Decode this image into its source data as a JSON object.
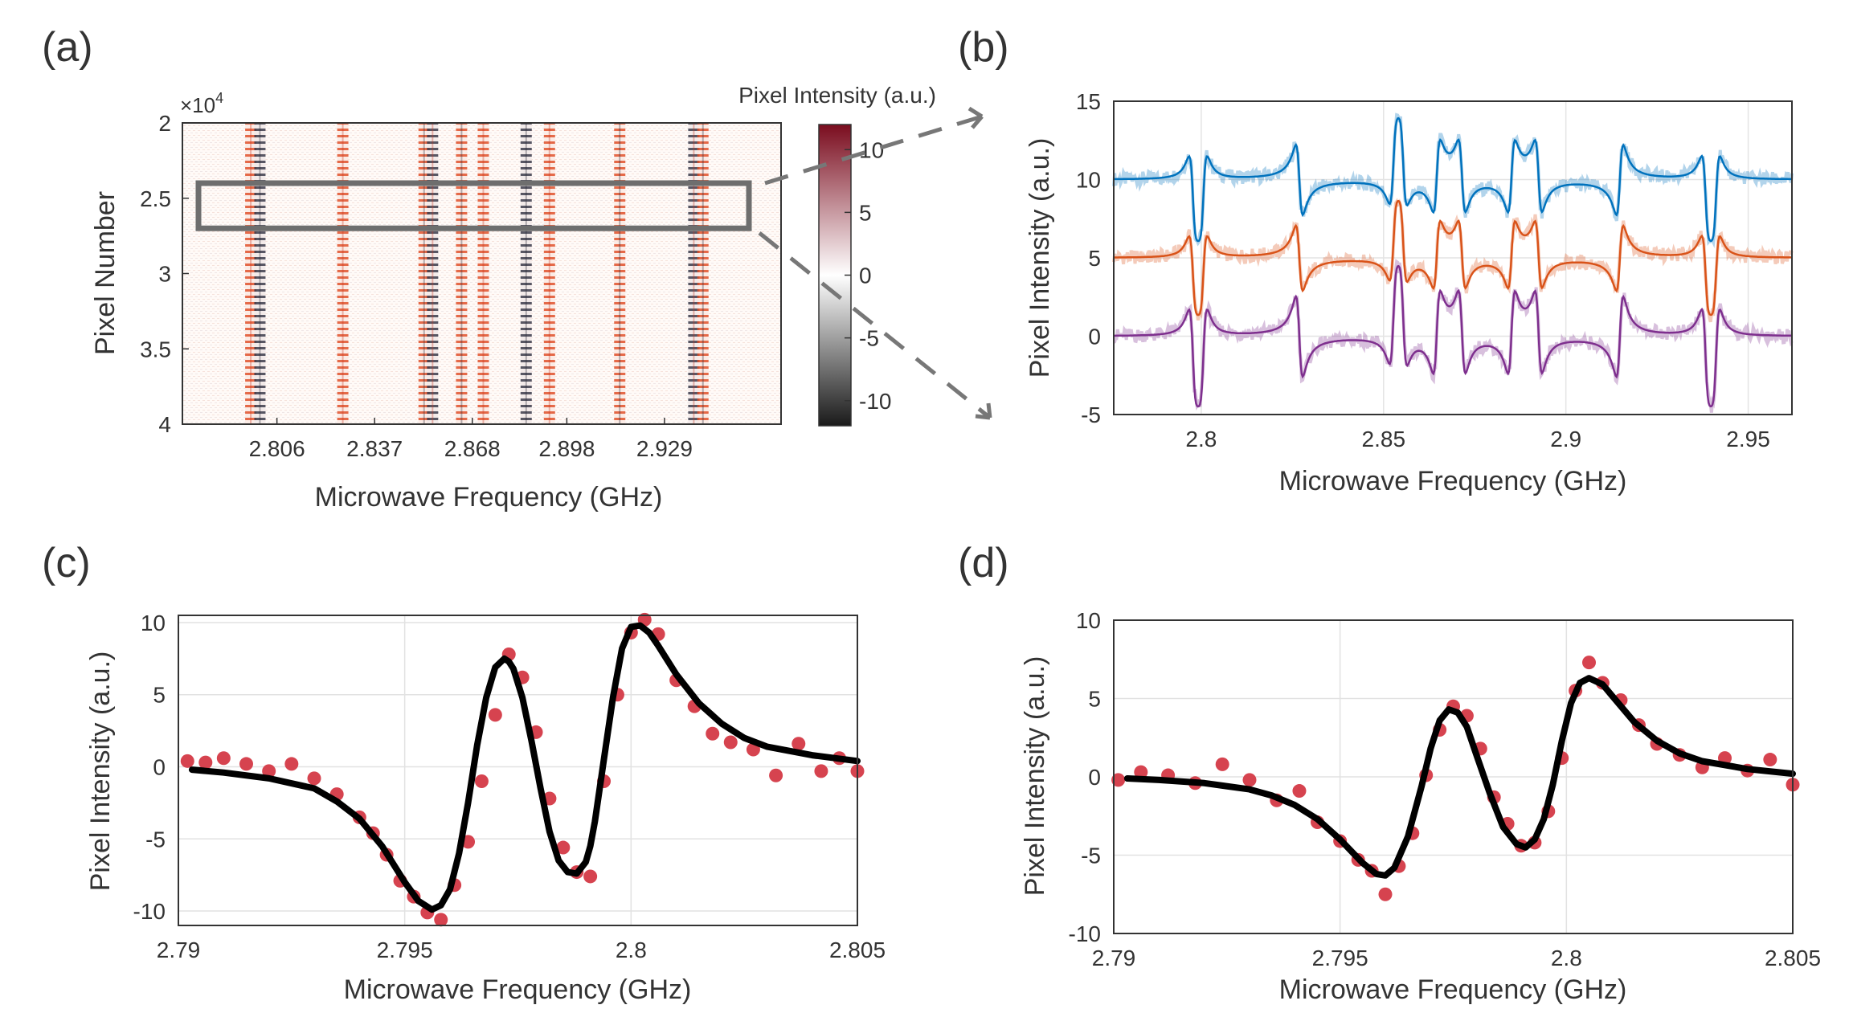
{
  "panels": {
    "a": {
      "label": "(a)"
    },
    "b": {
      "label": "(b)"
    },
    "c": {
      "label": "(c)"
    },
    "d": {
      "label": "(d)"
    }
  },
  "chart_data": [
    {
      "id": "a",
      "type": "heatmap",
      "title": "",
      "xlabel": "Microwave Frequency (GHz)",
      "ylabel": "Pixel Number",
      "xticks": [
        "2.806",
        "2.837",
        "2.868",
        "2.898",
        "2.929"
      ],
      "xtick_values": [
        2.806,
        2.837,
        2.868,
        2.898,
        2.929
      ],
      "xlim": [
        2.776,
        2.966
      ],
      "yticks": [
        "2",
        "2.5",
        "3",
        "3.5",
        "4"
      ],
      "ytick_values": [
        2,
        2.5,
        3,
        3.5,
        4
      ],
      "ylim": [
        2,
        4
      ],
      "y_multiplier": "×10",
      "y_multiplier_exponent": "4",
      "colorbar": {
        "label": "Pixel Intensity (a.u.)",
        "ticks": [
          "10",
          "5",
          "0",
          "-5",
          "-10"
        ],
        "tick_values": [
          10,
          5,
          0,
          -5,
          -10
        ],
        "range": [
          -12,
          12
        ],
        "colors": [
          "#1a1a1a",
          "#ffffff",
          "#7a0c1e"
        ]
      },
      "resonance_frequencies_ghz": [
        2.7977,
        2.8006,
        2.8269,
        2.8527,
        2.8554,
        2.8646,
        2.8715,
        2.8851,
        2.8925,
        2.9148,
        2.9383,
        2.9412
      ],
      "highlight_rows": [
        2.4,
        2.7
      ]
    },
    {
      "id": "b",
      "type": "line",
      "xlabel": "Microwave Frequency (GHz)",
      "ylabel": "Pixel Intensity (a.u.)",
      "xticks": [
        "2.8",
        "2.85",
        "2.9",
        "2.95"
      ],
      "xtick_values": [
        2.8,
        2.85,
        2.9,
        2.95
      ],
      "xlim": [
        2.776,
        2.962
      ],
      "yticks": [
        "15",
        "10",
        "5",
        "0",
        "-5"
      ],
      "ytick_values": [
        15,
        10,
        5,
        0,
        -5
      ],
      "ylim": [
        -5,
        15
      ],
      "resonance_frequencies_ghz": [
        2.7977,
        2.8006,
        2.8269,
        2.8527,
        2.8554,
        2.8646,
        2.8715,
        2.8851,
        2.8925,
        2.9148,
        2.9383,
        2.9412
      ],
      "series": [
        {
          "name": "top",
          "offset": 10,
          "amplitude": 2.8,
          "color": "#0072bd"
        },
        {
          "name": "middle",
          "offset": 5,
          "amplitude": 2.6,
          "color": "#d95319"
        },
        {
          "name": "bottom",
          "offset": 0,
          "amplitude": 3.2,
          "color": "#7e2f8e"
        }
      ]
    },
    {
      "id": "c",
      "type": "scatter",
      "xlabel": "Microwave Frequency (GHz)",
      "ylabel": "Pixel Intensity (a.u.)",
      "xticks": [
        "2.79",
        "2.795",
        "2.8",
        "2.805"
      ],
      "xtick_values": [
        2.79,
        2.795,
        2.8,
        2.805
      ],
      "xlim": [
        2.79,
        2.805
      ],
      "yticks": [
        "10",
        "5",
        "0",
        "-5",
        "-10"
      ],
      "ytick_values": [
        10,
        5,
        0,
        -5,
        -10
      ],
      "ylim": [
        -11,
        10.5
      ],
      "fit_x": [
        2.7903,
        2.791,
        2.792,
        2.793,
        2.7935,
        2.794,
        2.7945,
        2.795,
        2.7953,
        2.7956,
        2.7958,
        2.796,
        2.7962,
        2.7964,
        2.7966,
        2.7968,
        2.797,
        2.7972,
        2.7973,
        2.7974,
        2.7976,
        2.7978,
        2.798,
        2.7982,
        2.7984,
        2.7986,
        2.7988,
        2.799,
        2.7991,
        2.7992,
        2.7994,
        2.7996,
        2.7998,
        2.8,
        2.8002,
        2.8004,
        2.8006,
        2.801,
        2.8015,
        2.802,
        2.8025,
        2.803,
        2.804,
        2.805
      ],
      "fit_y": [
        -0.2,
        -0.4,
        -0.8,
        -1.5,
        -2.4,
        -3.6,
        -5.5,
        -8.0,
        -9.3,
        -9.9,
        -9.6,
        -8.5,
        -6.0,
        -2.5,
        1.5,
        4.8,
        6.9,
        7.5,
        7.3,
        6.8,
        4.8,
        1.8,
        -1.5,
        -4.5,
        -6.5,
        -7.3,
        -7.4,
        -6.6,
        -5.5,
        -3.8,
        0.5,
        4.8,
        8.2,
        9.7,
        9.8,
        9.3,
        8.4,
        6.4,
        4.4,
        3.0,
        2.0,
        1.4,
        0.8,
        0.4
      ],
      "points_x": [
        2.7902,
        2.7906,
        2.791,
        2.7915,
        2.792,
        2.7925,
        2.793,
        2.7935,
        2.794,
        2.7943,
        2.7946,
        2.7949,
        2.7952,
        2.7955,
        2.7958,
        2.7961,
        2.7964,
        2.7967,
        2.797,
        2.7973,
        2.7976,
        2.7979,
        2.7982,
        2.7985,
        2.7988,
        2.7991,
        2.7994,
        2.7997,
        2.8,
        2.8003,
        2.8006,
        2.801,
        2.8014,
        2.8018,
        2.8022,
        2.8027,
        2.8032,
        2.8037,
        2.8042,
        2.8046,
        2.805
      ],
      "points_y": [
        0.4,
        0.3,
        0.6,
        0.2,
        -0.3,
        0.2,
        -0.8,
        -1.9,
        -3.5,
        -4.6,
        -6.1,
        -7.9,
        -9.0,
        -10.1,
        -10.6,
        -8.2,
        -5.2,
        -1.0,
        3.6,
        7.8,
        6.2,
        2.4,
        -2.2,
        -5.6,
        -7.3,
        -7.6,
        -1.0,
        5.0,
        9.3,
        10.2,
        9.2,
        6.0,
        4.2,
        2.3,
        1.7,
        1.2,
        -0.6,
        1.6,
        -0.3,
        0.6,
        -0.3
      ]
    },
    {
      "id": "d",
      "type": "scatter",
      "xlabel": "Microwave Frequency (GHz)",
      "ylabel": "Pixel Intensity (a.u.)",
      "xticks": [
        "2.79",
        "2.795",
        "2.8",
        "2.805"
      ],
      "xtick_values": [
        2.79,
        2.795,
        2.8,
        2.805
      ],
      "xlim": [
        2.79,
        2.805
      ],
      "yticks": [
        "10",
        "5",
        "0",
        "-5",
        "-10"
      ],
      "ytick_values": [
        10,
        5,
        0,
        -5,
        -10
      ],
      "ylim": [
        -10,
        10
      ],
      "fit_x": [
        2.7903,
        2.791,
        2.792,
        2.793,
        2.7935,
        2.794,
        2.7945,
        2.795,
        2.7955,
        2.7958,
        2.796,
        2.7962,
        2.7965,
        2.7968,
        2.797,
        2.7972,
        2.7974,
        2.7976,
        2.7978,
        2.798,
        2.7983,
        2.7986,
        2.7989,
        2.7991,
        2.7993,
        2.7995,
        2.7997,
        2.7999,
        2.8001,
        2.8003,
        2.8005,
        2.8008,
        2.801,
        2.8015,
        2.802,
        2.8025,
        2.803,
        2.804,
        2.805
      ],
      "fit_y": [
        -0.1,
        -0.2,
        -0.4,
        -0.8,
        -1.2,
        -1.8,
        -2.7,
        -4.0,
        -5.5,
        -6.2,
        -6.3,
        -5.8,
        -3.8,
        -0.6,
        1.8,
        3.6,
        4.3,
        4.1,
        3.2,
        1.5,
        -1.0,
        -3.2,
        -4.3,
        -4.5,
        -4.0,
        -2.7,
        -0.5,
        2.3,
        4.7,
        6.0,
        6.3,
        5.9,
        5.2,
        3.5,
        2.3,
        1.5,
        1.0,
        0.5,
        0.2
      ],
      "points_x": [
        2.7901,
        2.7906,
        2.7912,
        2.7918,
        2.7924,
        2.793,
        2.7936,
        2.7941,
        2.7945,
        2.795,
        2.7954,
        2.7957,
        2.796,
        2.7963,
        2.7966,
        2.7969,
        2.7972,
        2.7975,
        2.7978,
        2.7981,
        2.7984,
        2.7987,
        2.799,
        2.7993,
        2.7996,
        2.7999,
        2.8002,
        2.8005,
        2.8008,
        2.8012,
        2.8016,
        2.802,
        2.8025,
        2.803,
        2.8035,
        2.804,
        2.8045,
        2.805
      ],
      "points_y": [
        -0.2,
        0.3,
        0.1,
        -0.4,
        0.8,
        -0.2,
        -1.5,
        -0.9,
        -2.9,
        -4.1,
        -5.3,
        -6.0,
        -7.5,
        -5.7,
        -3.6,
        0.1,
        3.0,
        4.5,
        3.9,
        1.8,
        -1.3,
        -3.0,
        -4.4,
        -4.2,
        -2.2,
        1.2,
        5.5,
        7.3,
        6.0,
        4.9,
        3.3,
        2.1,
        1.4,
        0.6,
        1.2,
        0.4,
        1.1,
        -0.5
      ]
    }
  ]
}
